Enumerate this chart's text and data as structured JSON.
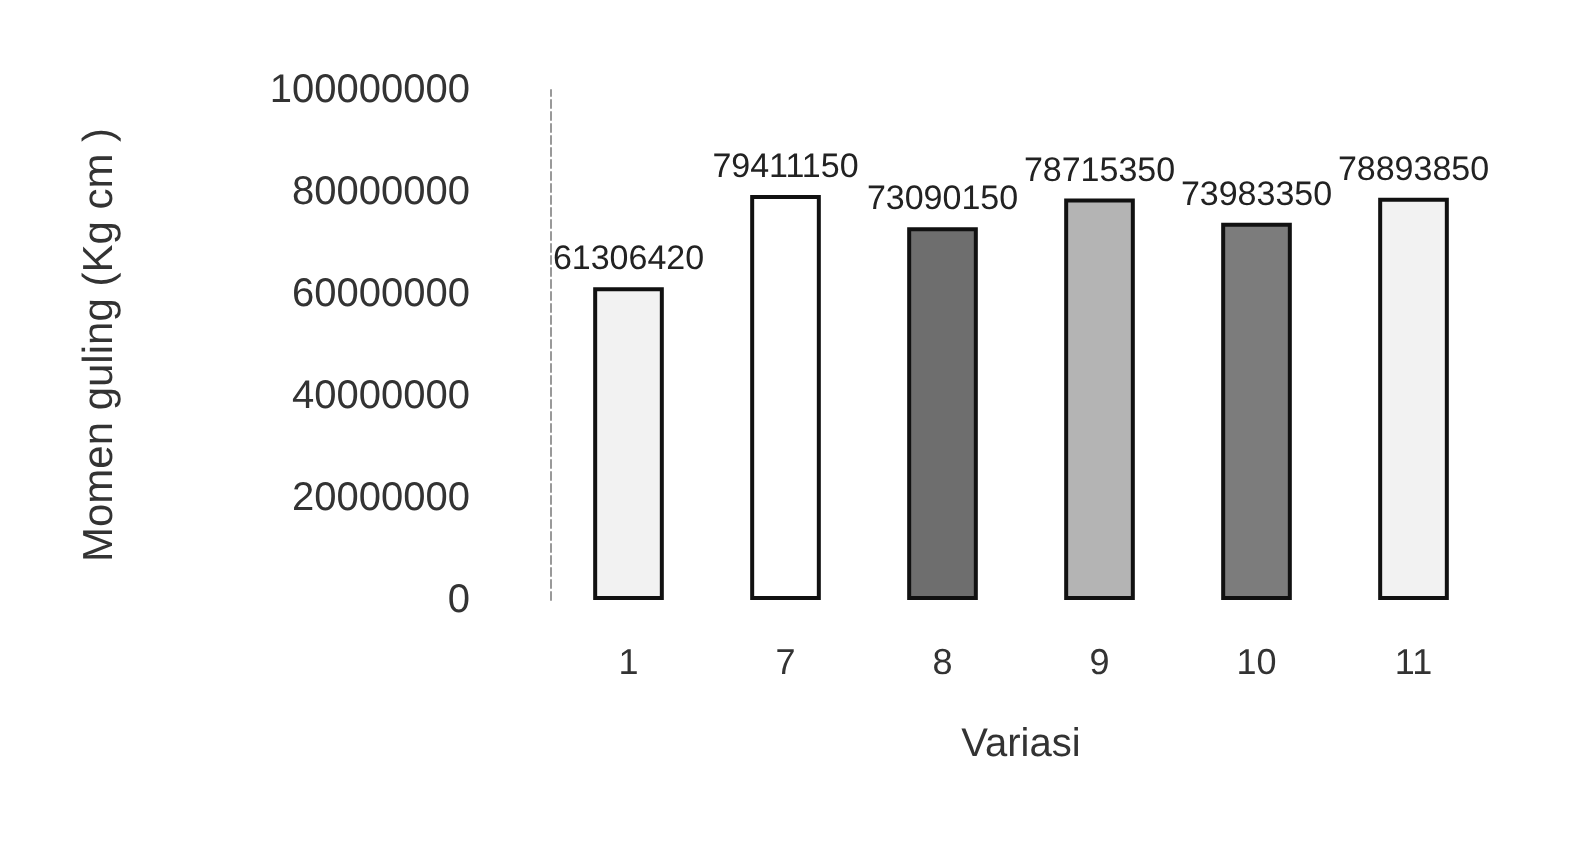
{
  "chart_data": {
    "type": "bar",
    "xlabel": "Variasi",
    "ylabel": "Momen guling (Kg cm )",
    "categories": [
      "1",
      "7",
      "8",
      "9",
      "10",
      "11"
    ],
    "values": [
      61306420,
      79411150,
      73090150,
      78715350,
      73983350,
      78893850
    ],
    "colors": [
      "#f2f2f2",
      "#ffffff",
      "#6e6e6e",
      "#b4b4b4",
      "#7c7c7c",
      "#f2f2f2"
    ],
    "ylim": [
      0,
      100000000
    ],
    "yticks": [
      0,
      20000000,
      40000000,
      60000000,
      80000000,
      100000000
    ],
    "grid": false,
    "data_labels": true
  }
}
